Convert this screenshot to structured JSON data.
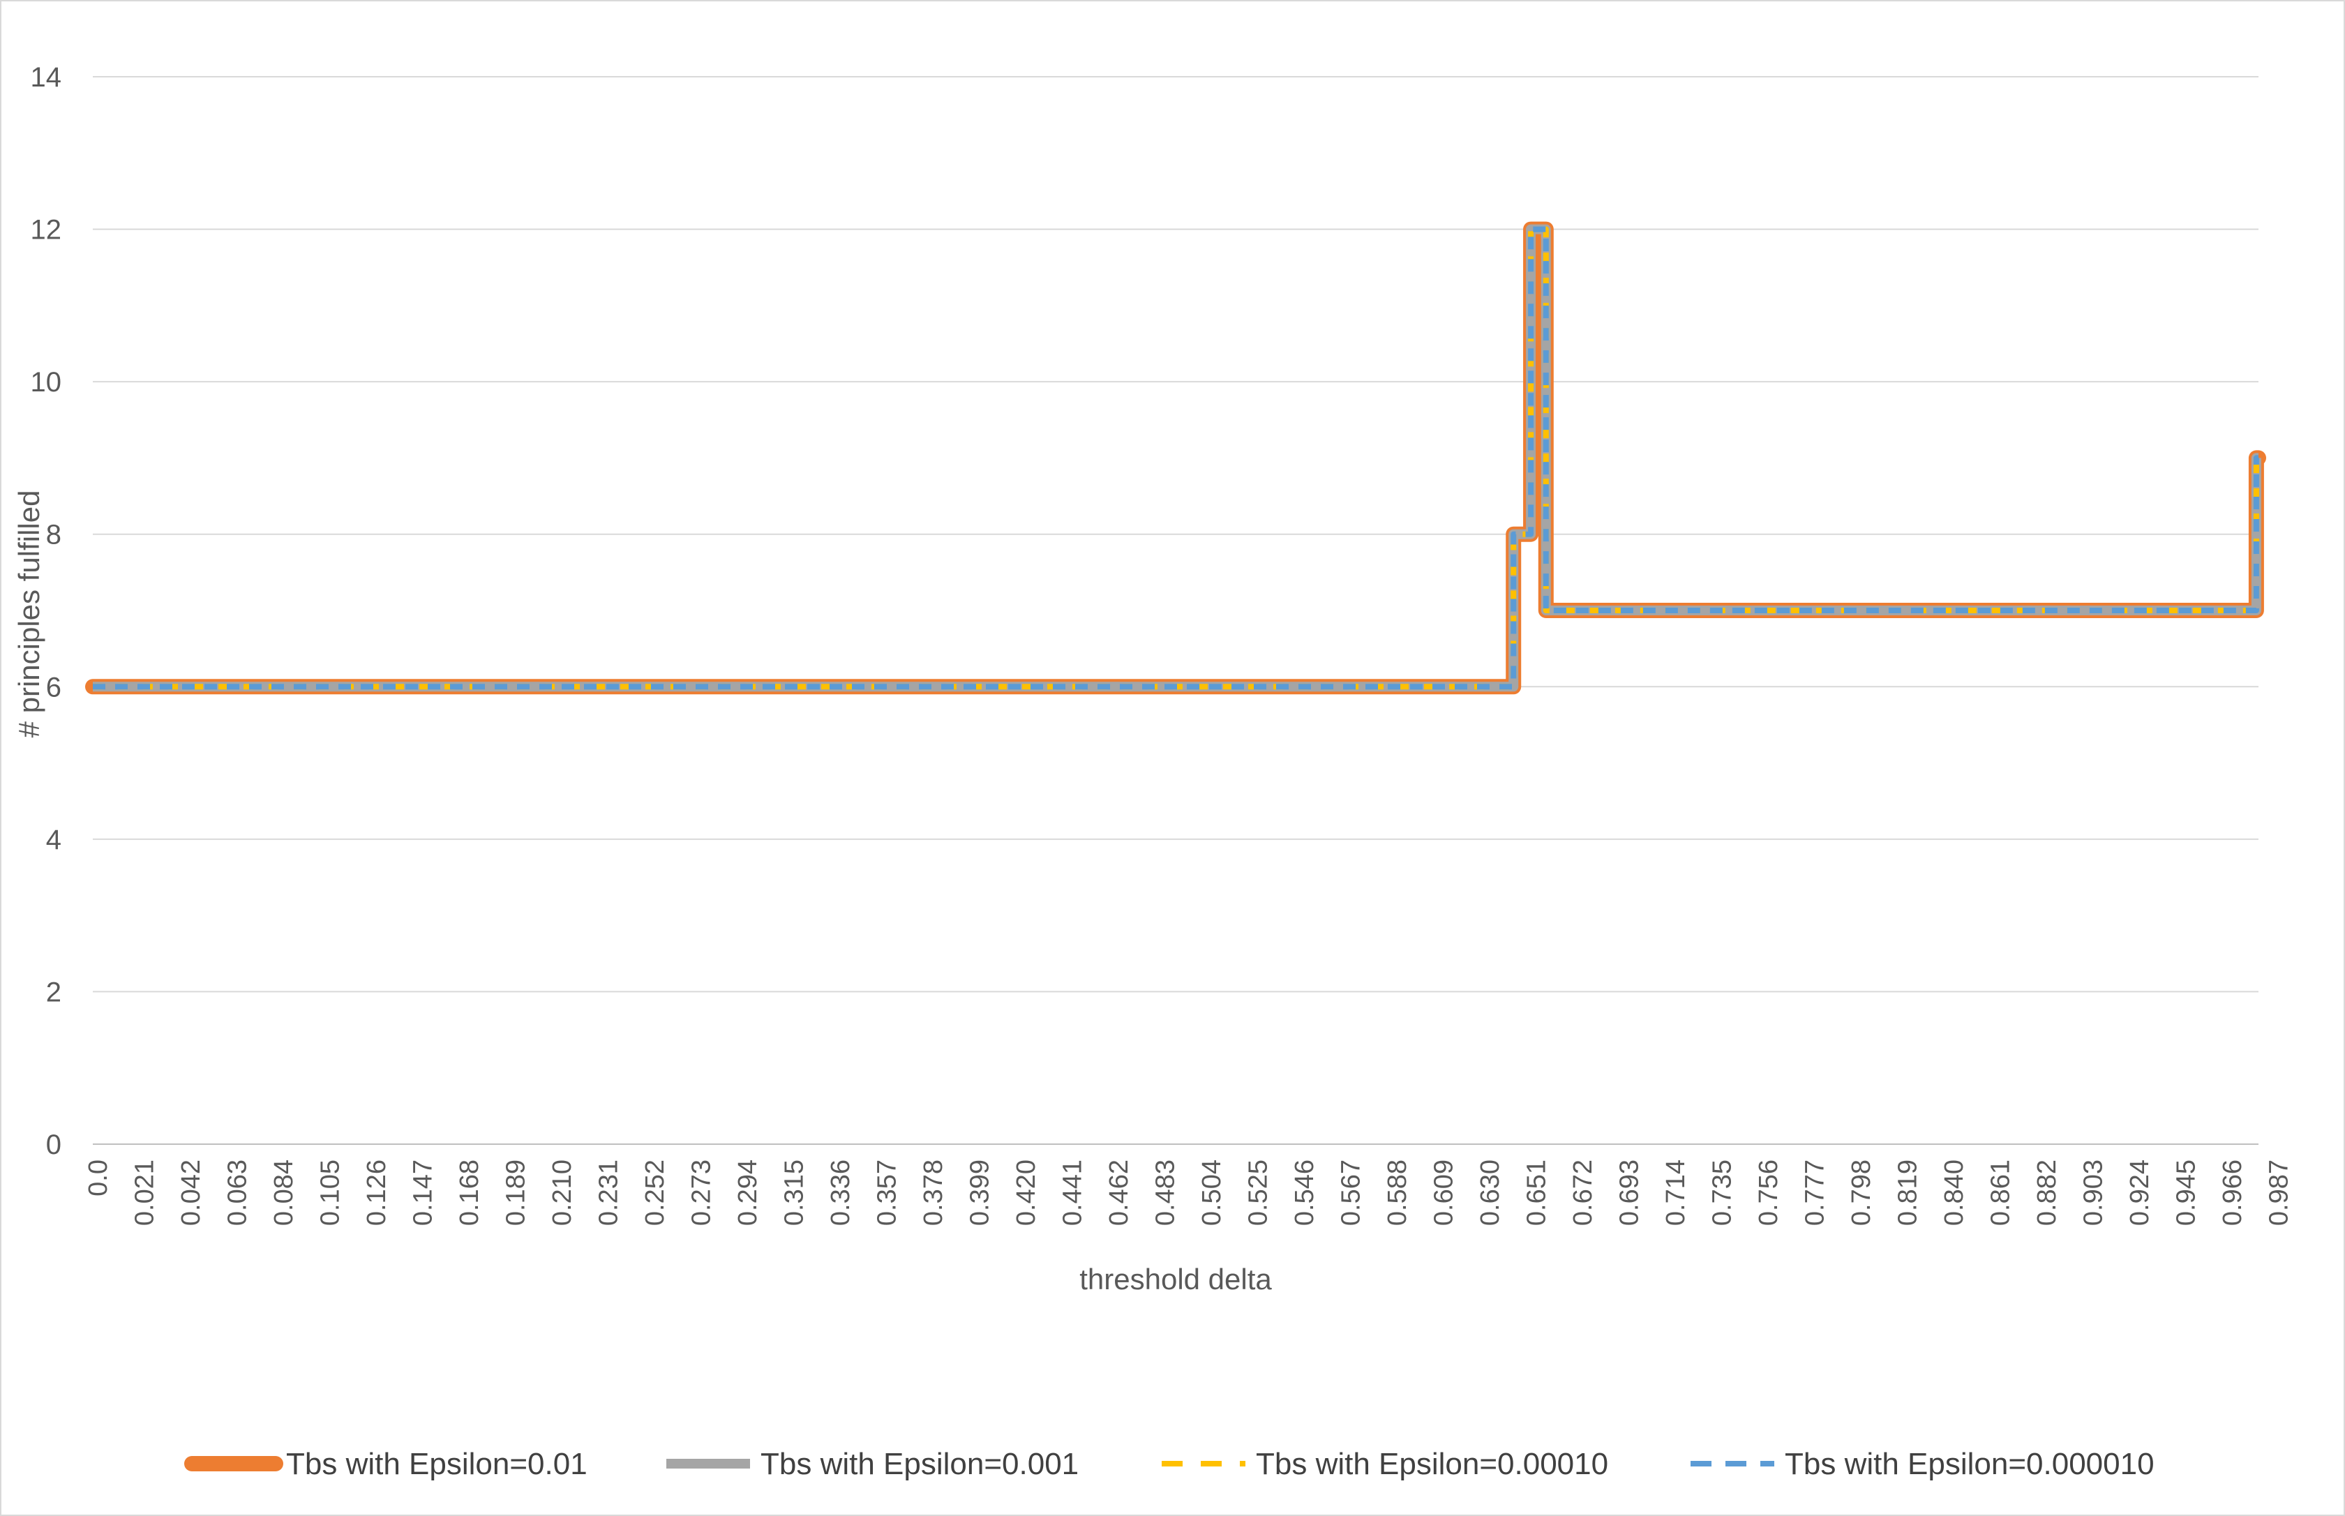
{
  "chart_data": {
    "type": "line",
    "title": "",
    "xlabel": "threshold delta",
    "ylabel": "# principles fulfilled",
    "ylim": [
      0,
      14
    ],
    "yticks": [
      0,
      2,
      4,
      6,
      8,
      10,
      12,
      14
    ],
    "grid": true,
    "legend_position": "bottom",
    "x_tick_labels": [
      "0.0",
      "0.021",
      "0.042",
      "0.063",
      "0.084",
      "0.105",
      "0.126",
      "0.147",
      "0.168",
      "0.189",
      "0.210",
      "0.231",
      "0.252",
      "0.273",
      "0.294",
      "0.315",
      "0.336",
      "0.357",
      "0.378",
      "0.399",
      "0.420",
      "0.441",
      "0.462",
      "0.483",
      "0.504",
      "0.525",
      "0.546",
      "0.567",
      "0.588",
      "0.609",
      "0.630",
      "0.651",
      "0.672",
      "0.693",
      "0.714",
      "0.735",
      "0.756",
      "0.777",
      "0.798",
      "0.819",
      "0.840",
      "0.861",
      "0.882",
      "0.903",
      "0.924",
      "0.945",
      "0.966",
      "0.987"
    ],
    "xlim": [
      0,
      1.0
    ],
    "steps": [
      {
        "x_start": 0.0,
        "x_end": 0.656,
        "value": 6
      },
      {
        "x_start": 0.656,
        "x_end": 0.664,
        "value": 8
      },
      {
        "x_start": 0.664,
        "x_end": 0.671,
        "value": 12
      },
      {
        "x_start": 0.671,
        "x_end": 0.999,
        "value": 7
      },
      {
        "x_start": 0.999,
        "x_end": 1.0,
        "value": 9
      }
    ],
    "series": [
      {
        "name": "Tbs with Epsilon=0.01",
        "color": "#ED7D31",
        "style": "solid"
      },
      {
        "name": "Tbs with Epsilon=0.001",
        "color": "#A5A5A5",
        "style": "solid"
      },
      {
        "name": "Tbs with Epsilon=0.00010",
        "color": "#FFC000",
        "style": "dashed"
      },
      {
        "name": "Tbs with Epsilon=0.000010",
        "color": "#5B9BD5",
        "style": "dashed"
      }
    ]
  }
}
